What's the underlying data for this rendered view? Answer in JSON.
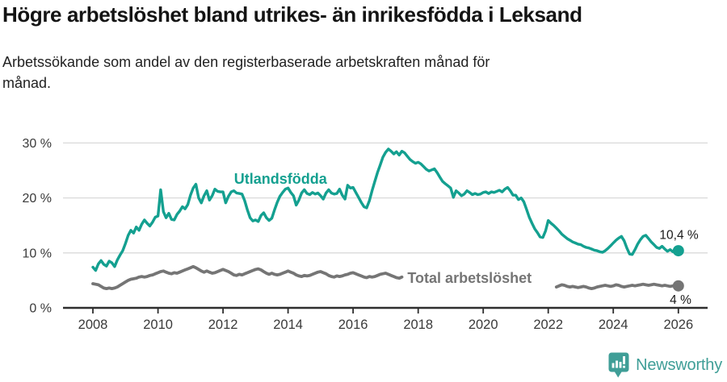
{
  "header": {
    "title": "Högre arbetslöshet bland utrikes- än inrikesfödda i Leksand",
    "subtitle_lines": [
      "Arbetssökande som andel av den registerbaserade arbetskraften månad för",
      "månad."
    ]
  },
  "footer": {
    "brand": "Newsworthy",
    "logo_color": "#3f9e97"
  },
  "chart_data": {
    "type": "line",
    "title": "Högre arbetslöshet bland utrikes- än inrikesfödda i Leksand",
    "subtitle": "Arbetssökande som andel av den registerbaserade arbetskraften månad för månad.",
    "xlabel": "",
    "ylabel": "",
    "xlim": [
      2007.08,
      2026.9
    ],
    "ylim": [
      0,
      30
    ],
    "grid": "horizontal",
    "start_year": 2008,
    "frequency": "monthly",
    "x_ticks": [
      {
        "value": 2008,
        "label": "2008"
      },
      {
        "value": 2010,
        "label": "2010"
      },
      {
        "value": 2012,
        "label": "2012"
      },
      {
        "value": 2014,
        "label": "2014"
      },
      {
        "value": 2016,
        "label": "2016"
      },
      {
        "value": 2018,
        "label": "2018"
      },
      {
        "value": 2020,
        "label": "2020"
      },
      {
        "value": 2022,
        "label": "2022"
      },
      {
        "value": 2024,
        "label": "2024"
      },
      {
        "value": 2026,
        "label": "2026"
      }
    ],
    "y_ticks": [
      {
        "value": 0,
        "label": "0 %"
      },
      {
        "value": 10,
        "label": "10 %"
      },
      {
        "value": 20,
        "label": "20 %"
      },
      {
        "value": 30,
        "label": "30 %"
      }
    ],
    "colors": {
      "teal": "#14a090",
      "gray": "#757575",
      "grid": "#d9d9d9",
      "axis": "#2e2e2e",
      "tick_text": "#3a3a3a",
      "annotation": "#1a1a1a"
    },
    "series": [
      {
        "id": "utlandsfodda",
        "label": "Utlandsfödda",
        "color": "#14a090",
        "width": 3.4,
        "label_year": 2012.34,
        "label_pct": 22.6,
        "values": [
          7.4,
          6.8,
          8.0,
          8.6,
          7.9,
          7.6,
          8.5,
          8.2,
          7.5,
          8.7,
          9.6,
          10.4,
          11.7,
          13.2,
          14.1,
          13.6,
          14.7,
          14.1,
          15.2,
          16.0,
          15.4,
          14.9,
          15.6,
          16.5,
          16.7,
          21.5,
          17.5,
          16.4,
          17.2,
          16.1,
          16.0,
          17.0,
          17.6,
          18.4,
          18.0,
          18.8,
          20.5,
          21.8,
          22.5,
          20.0,
          19.1,
          20.4,
          21.3,
          19.6,
          20.4,
          21.6,
          21.2,
          21.1,
          21.1,
          19.1,
          20.3,
          21.1,
          21.3,
          20.9,
          20.8,
          20.7,
          19.5,
          17.8,
          16.4,
          15.8,
          16.0,
          15.7,
          16.8,
          17.3,
          16.4,
          15.9,
          16.3,
          17.8,
          19.2,
          20.3,
          21.0,
          21.6,
          21.8,
          21.0,
          20.4,
          18.7,
          19.6,
          20.9,
          21.5,
          20.8,
          20.6,
          21.0,
          20.7,
          20.9,
          20.4,
          19.8,
          20.9,
          21.5,
          20.9,
          20.7,
          20.8,
          21.6,
          20.5,
          19.8,
          22.3,
          21.8,
          21.9,
          21.0,
          20.1,
          19.2,
          18.4,
          18.2,
          19.5,
          21.3,
          23.0,
          24.6,
          26.0,
          27.4,
          28.3,
          28.9,
          28.5,
          28.0,
          28.4,
          27.8,
          28.5,
          28.2,
          27.6,
          27.0,
          26.6,
          26.3,
          26.5,
          26.2,
          25.7,
          25.2,
          24.9,
          25.1,
          25.3,
          24.6,
          23.8,
          23.0,
          22.6,
          22.2,
          21.8,
          20.1,
          21.3,
          20.9,
          20.4,
          20.7,
          21.3,
          21.0,
          20.6,
          20.8,
          20.6,
          20.7,
          21.0,
          21.1,
          20.8,
          21.1,
          21.0,
          21.2,
          21.4,
          21.1,
          21.6,
          21.9,
          21.3,
          20.5,
          20.5,
          19.7,
          20.0,
          19.3,
          17.9,
          16.5,
          15.4,
          14.4,
          13.7,
          12.9,
          12.8,
          14.0,
          15.9,
          15.4,
          15.0,
          14.5,
          14.0,
          13.4,
          13.0,
          12.6,
          12.3,
          12.0,
          11.8,
          11.6,
          11.5,
          11.2,
          11.0,
          10.9,
          10.7,
          10.5,
          10.4,
          10.2,
          10.1,
          10.4,
          10.8,
          11.3,
          11.8,
          12.3,
          12.7,
          13.0,
          12.2,
          10.9,
          9.8,
          9.7,
          10.6,
          11.6,
          12.4,
          13.0,
          13.2,
          12.6,
          12.0,
          11.5,
          11.0,
          10.8,
          11.2,
          10.7,
          10.3,
          10.6,
          10.2,
          10.3,
          10.4
        ]
      },
      {
        "id": "total",
        "label": "Total arbetslöshet",
        "color": "#757575",
        "width": 3.8,
        "label_year": 2017.67,
        "label_pct": 4.55,
        "values": [
          4.4,
          4.3,
          4.2,
          3.9,
          3.6,
          3.5,
          3.6,
          3.5,
          3.6,
          3.8,
          4.1,
          4.4,
          4.7,
          5.0,
          5.2,
          5.3,
          5.4,
          5.6,
          5.7,
          5.6,
          5.7,
          5.9,
          6.0,
          6.2,
          6.4,
          6.6,
          6.7,
          6.5,
          6.3,
          6.2,
          6.4,
          6.3,
          6.5,
          6.7,
          6.9,
          7.1,
          7.3,
          7.5,
          7.3,
          7.0,
          6.7,
          6.5,
          6.7,
          6.5,
          6.3,
          6.4,
          6.6,
          6.8,
          7.0,
          6.8,
          6.6,
          6.3,
          6.0,
          5.9,
          6.1,
          6.0,
          6.2,
          6.4,
          6.6,
          6.8,
          7.0,
          7.1,
          6.9,
          6.6,
          6.3,
          6.1,
          6.3,
          6.1,
          6.0,
          6.1,
          6.3,
          6.5,
          6.7,
          6.5,
          6.3,
          6.0,
          5.8,
          5.7,
          5.9,
          5.8,
          5.9,
          6.1,
          6.3,
          6.5,
          6.6,
          6.4,
          6.2,
          5.9,
          5.7,
          5.6,
          5.8,
          5.7,
          5.8,
          6.0,
          6.1,
          6.3,
          6.4,
          6.2,
          6.0,
          5.8,
          5.6,
          5.5,
          5.7,
          5.6,
          5.7,
          5.9,
          6.1,
          6.2,
          6.3,
          6.1,
          5.9,
          5.7,
          5.5,
          5.4,
          5.6,
          null,
          null,
          null,
          null,
          null,
          null,
          null,
          null,
          null,
          null,
          null,
          null,
          null,
          null,
          null,
          null,
          null,
          null,
          null,
          null,
          null,
          null,
          null,
          null,
          null,
          null,
          null,
          null,
          null,
          null,
          null,
          null,
          null,
          null,
          null,
          null,
          null,
          null,
          null,
          null,
          null,
          null,
          null,
          null,
          null,
          null,
          null,
          null,
          null,
          null,
          null,
          null,
          null,
          null,
          null,
          null,
          3.8,
          4.0,
          4.2,
          4.1,
          3.9,
          3.8,
          3.9,
          3.8,
          3.7,
          3.8,
          3.9,
          3.8,
          3.6,
          3.5,
          3.6,
          3.8,
          3.9,
          4.0,
          4.1,
          4.0,
          3.9,
          4.0,
          4.2,
          4.1,
          3.9,
          3.8,
          3.9,
          4.0,
          4.1,
          4.0,
          4.1,
          4.2,
          4.3,
          4.2,
          4.1,
          4.2,
          4.3,
          4.2,
          4.1,
          4.0,
          4.1,
          4.0,
          3.9,
          4.0,
          4.0,
          4.0
        ]
      }
    ],
    "annotations": [
      {
        "text": "10,4 %",
        "year": 2026.62,
        "pct": 12.55,
        "align": "end"
      },
      {
        "text": "4 %",
        "year": 2026.4,
        "pct": 0.72,
        "align": "end"
      }
    ],
    "legend_position": "inline-labels"
  }
}
